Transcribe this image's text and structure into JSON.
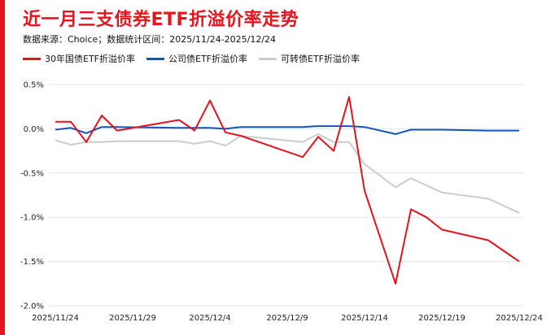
{
  "colors": {
    "accent": "#e8141c",
    "series": [
      "#e0141c",
      "#1155bb",
      "#cccccc"
    ]
  },
  "chart_data": {
    "type": "line",
    "title": "近一月三支债券ETF折溢价率走势",
    "subtitle": "数据来源：Choice；数据统计区间：2025/11/24-2025/12/24",
    "xlabel": "",
    "ylabel": "",
    "ylim": [
      -2.0,
      0.5
    ],
    "yticks": [
      0.5,
      0.0,
      -0.5,
      -1.0,
      -1.5,
      -2.0
    ],
    "ytick_labels": [
      "0.5%",
      "0.0%",
      "-0.5%",
      "-1.0%",
      "-1.5%",
      "-2.0%"
    ],
    "xtick_labels": [
      "2025/11/24",
      "2025/11/29",
      "2025/12/4",
      "2025/12/9",
      "2025/12/14",
      "2025/12/19",
      "2025/12/24"
    ],
    "xtick_days": [
      0,
      5,
      10,
      15,
      20,
      25,
      30
    ],
    "x_range": [
      0,
      30
    ],
    "legend_position": "top",
    "series": [
      {
        "name": "30年国债ETF折溢价率",
        "x": [
          0,
          1,
          2,
          3,
          4,
          8,
          9,
          10,
          11,
          12,
          16,
          17,
          18,
          19,
          20,
          22,
          23,
          24,
          25,
          28,
          30
        ],
        "y": [
          0.08,
          0.08,
          -0.15,
          0.15,
          -0.02,
          0.1,
          -0.02,
          0.32,
          -0.04,
          -0.08,
          -0.32,
          -0.09,
          -0.25,
          0.36,
          -0.7,
          -1.75,
          -0.91,
          -1.0,
          -1.14,
          -1.26,
          -1.5
        ]
      },
      {
        "name": "公司债ETF折溢价率",
        "x": [
          0,
          1,
          2,
          3,
          4,
          8,
          9,
          10,
          11,
          12,
          16,
          17,
          18,
          19,
          20,
          22,
          23,
          24,
          25,
          28,
          30
        ],
        "y": [
          -0.01,
          0.01,
          -0.05,
          0.02,
          0.02,
          0.01,
          0.01,
          0.01,
          0.0,
          0.02,
          0.02,
          0.03,
          0.03,
          0.03,
          0.02,
          -0.06,
          -0.01,
          -0.01,
          -0.01,
          -0.02,
          -0.02
        ]
      },
      {
        "name": "可转债ETF折溢价率",
        "x": [
          0,
          1,
          2,
          3,
          4,
          8,
          9,
          10,
          11,
          12,
          16,
          17,
          18,
          19,
          20,
          22,
          23,
          24,
          25,
          28,
          30
        ],
        "y": [
          -0.13,
          -0.18,
          -0.15,
          -0.15,
          -0.14,
          -0.14,
          -0.17,
          -0.14,
          -0.19,
          -0.08,
          -0.15,
          -0.06,
          -0.15,
          -0.15,
          -0.4,
          -0.66,
          -0.56,
          -0.64,
          -0.72,
          -0.79,
          -0.95
        ]
      }
    ]
  }
}
